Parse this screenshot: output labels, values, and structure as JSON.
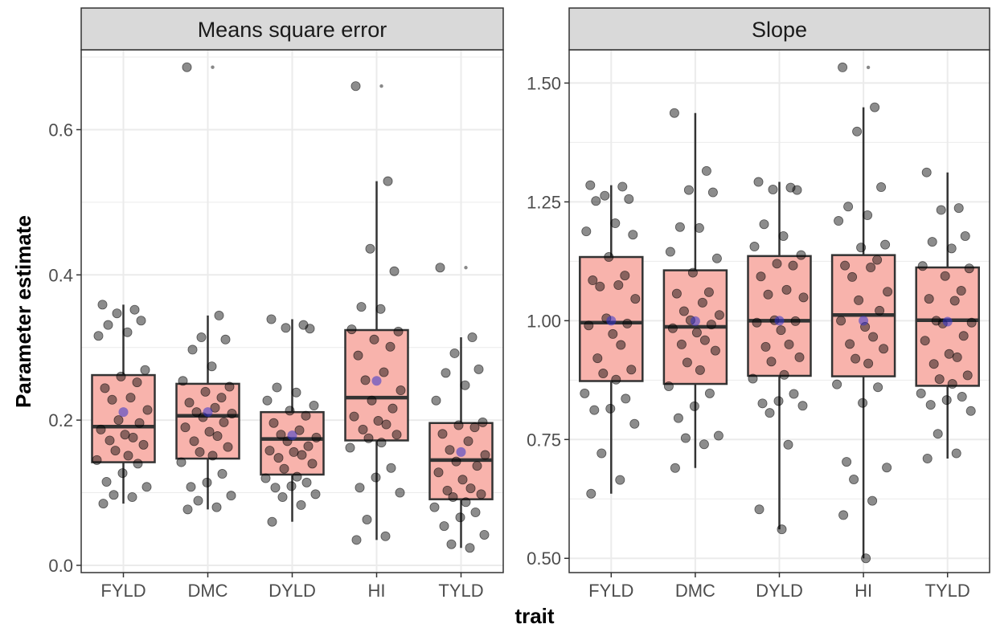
{
  "figure": {
    "ylabel": "Parameter estimate",
    "xlabel": "trait"
  },
  "colors": {
    "box_fill": "#f8b3ac",
    "box_stroke": "#333333",
    "point": "#000000",
    "mean_point": "#3333cc",
    "strip_fill": "#d9d9d9",
    "grid": "#ebebeb",
    "panel_border": "#333333"
  },
  "chart_data": [
    {
      "type": "box",
      "title": "Means square error",
      "categories": [
        "FYLD",
        "DMC",
        "DYLD",
        "HI",
        "TYLD"
      ],
      "ylim": [
        -0.01,
        0.71
      ],
      "yticks": [
        0.0,
        0.2,
        0.4,
        0.6
      ],
      "ytick_labels": [
        "0.0",
        "0.2",
        "0.4",
        "0.6"
      ],
      "grid": true,
      "boxes": [
        {
          "category": "FYLD",
          "whisker_low": 0.085,
          "q1": 0.142,
          "median": 0.191,
          "q3": 0.262,
          "whisker_high": 0.359,
          "mean": 0.211,
          "outliers": []
        },
        {
          "category": "DMC",
          "whisker_low": 0.077,
          "q1": 0.147,
          "median": 0.206,
          "q3": 0.25,
          "whisker_high": 0.344,
          "mean": 0.211,
          "outliers": [
            0.686
          ]
        },
        {
          "category": "DYLD",
          "whisker_low": 0.06,
          "q1": 0.125,
          "median": 0.174,
          "q3": 0.211,
          "whisker_high": 0.339,
          "mean": 0.179,
          "outliers": []
        },
        {
          "category": "HI",
          "whisker_low": 0.035,
          "q1": 0.172,
          "median": 0.231,
          "q3": 0.324,
          "whisker_high": 0.529,
          "mean": 0.254,
          "outliers": [
            0.66
          ]
        },
        {
          "category": "TYLD",
          "whisker_low": 0.024,
          "q1": 0.091,
          "median": 0.145,
          "q3": 0.196,
          "whisker_high": 0.314,
          "mean": 0.156,
          "outliers": [
            0.41
          ]
        }
      ],
      "jitter_points": [
        [
          0.359,
          0.352,
          0.347,
          0.337,
          0.331,
          0.321,
          0.316,
          0.269,
          0.26,
          0.252,
          0.244,
          0.231,
          0.228,
          0.214,
          0.2,
          0.196,
          0.187,
          0.18,
          0.176,
          0.172,
          0.166,
          0.158,
          0.151,
          0.145,
          0.14,
          0.127,
          0.115,
          0.108,
          0.097,
          0.094,
          0.085
        ],
        [
          0.686,
          0.344,
          0.314,
          0.311,
          0.297,
          0.274,
          0.254,
          0.246,
          0.239,
          0.231,
          0.224,
          0.217,
          0.211,
          0.209,
          0.204,
          0.197,
          0.19,
          0.184,
          0.178,
          0.171,
          0.163,
          0.156,
          0.151,
          0.142,
          0.126,
          0.114,
          0.108,
          0.096,
          0.089,
          0.08,
          0.077
        ],
        [
          0.339,
          0.331,
          0.327,
          0.326,
          0.245,
          0.238,
          0.227,
          0.22,
          0.213,
          0.206,
          0.196,
          0.186,
          0.18,
          0.176,
          0.171,
          0.164,
          0.158,
          0.156,
          0.152,
          0.148,
          0.14,
          0.133,
          0.122,
          0.12,
          0.114,
          0.109,
          0.107,
          0.098,
          0.094,
          0.083,
          0.06
        ],
        [
          0.66,
          0.529,
          0.436,
          0.405,
          0.356,
          0.353,
          0.325,
          0.322,
          0.311,
          0.301,
          0.289,
          0.266,
          0.255,
          0.241,
          0.227,
          0.216,
          0.205,
          0.199,
          0.194,
          0.187,
          0.18,
          0.175,
          0.169,
          0.162,
          0.134,
          0.121,
          0.107,
          0.1,
          0.063,
          0.04,
          0.035
        ],
        [
          0.41,
          0.314,
          0.292,
          0.27,
          0.265,
          0.248,
          0.227,
          0.197,
          0.193,
          0.19,
          0.181,
          0.171,
          0.159,
          0.152,
          0.143,
          0.137,
          0.128,
          0.118,
          0.106,
          0.103,
          0.098,
          0.094,
          0.087,
          0.08,
          0.073,
          0.066,
          0.054,
          0.042,
          0.029,
          0.024
        ]
      ]
    },
    {
      "type": "box",
      "title": "Slope",
      "categories": [
        "FYLD",
        "DMC",
        "DYLD",
        "HI",
        "TYLD"
      ],
      "ylim": [
        0.47,
        1.57
      ],
      "yticks": [
        0.5,
        0.75,
        1.0,
        1.25,
        1.5
      ],
      "ytick_labels": [
        "0.50",
        "0.75",
        "1.00",
        "1.25",
        "1.50"
      ],
      "grid": true,
      "boxes": [
        {
          "category": "FYLD",
          "whisker_low": 0.636,
          "q1": 0.873,
          "median": 0.996,
          "q3": 1.134,
          "whisker_high": 1.285,
          "mean": 1.0,
          "outliers": []
        },
        {
          "category": "DMC",
          "whisker_low": 0.69,
          "q1": 0.867,
          "median": 0.987,
          "q3": 1.106,
          "whisker_high": 1.437,
          "mean": 0.999,
          "outliers": []
        },
        {
          "category": "DYLD",
          "whisker_low": 0.561,
          "q1": 0.884,
          "median": 1.0,
          "q3": 1.136,
          "whisker_high": 1.292,
          "mean": 1.0,
          "outliers": []
        },
        {
          "category": "HI",
          "whisker_low": 0.5,
          "q1": 0.883,
          "median": 1.012,
          "q3": 1.138,
          "whisker_high": 1.449,
          "mean": 1.0,
          "outliers": [
            1.533
          ]
        },
        {
          "category": "TYLD",
          "whisker_low": 0.71,
          "q1": 0.863,
          "median": 1.001,
          "q3": 1.112,
          "whisker_high": 1.312,
          "mean": 0.998,
          "outliers": []
        }
      ],
      "jitter_points": [
        [
          1.285,
          1.282,
          1.263,
          1.256,
          1.252,
          1.205,
          1.188,
          1.181,
          1.134,
          1.095,
          1.085,
          1.075,
          1.072,
          1.046,
          1.005,
          0.994,
          0.99,
          0.972,
          0.949,
          0.921,
          0.897,
          0.889,
          0.876,
          0.847,
          0.836,
          0.815,
          0.812,
          0.783,
          0.721,
          0.665,
          0.636
        ],
        [
          1.437,
          1.315,
          1.275,
          1.27,
          1.197,
          1.195,
          1.145,
          1.131,
          1.101,
          1.06,
          1.057,
          1.038,
          1.02,
          1.012,
          1.001,
          0.992,
          0.984,
          0.975,
          0.959,
          0.95,
          0.937,
          0.912,
          0.896,
          0.862,
          0.847,
          0.82,
          0.795,
          0.758,
          0.753,
          0.74,
          0.69
        ],
        [
          1.292,
          1.28,
          1.276,
          1.275,
          1.203,
          1.178,
          1.156,
          1.138,
          1.12,
          1.116,
          1.093,
          1.065,
          1.055,
          1.049,
          1.001,
          0.999,
          0.996,
          0.98,
          0.95,
          0.945,
          0.923,
          0.914,
          0.886,
          0.878,
          0.846,
          0.831,
          0.826,
          0.821,
          0.806,
          0.739,
          0.603,
          0.561
        ],
        [
          1.533,
          1.449,
          1.398,
          1.281,
          1.24,
          1.222,
          1.21,
          1.16,
          1.154,
          1.128,
          1.116,
          1.112,
          1.092,
          1.061,
          1.043,
          1.021,
          1.0,
          0.987,
          0.966,
          0.951,
          0.941,
          0.92,
          0.91,
          0.866,
          0.86,
          0.827,
          0.703,
          0.691,
          0.666,
          0.621,
          0.591,
          0.5
        ],
        [
          1.312,
          1.237,
          1.233,
          1.178,
          1.166,
          1.152,
          1.115,
          1.11,
          1.094,
          1.063,
          1.046,
          1.042,
          1.0,
          0.996,
          0.994,
          0.968,
          0.958,
          0.93,
          0.923,
          0.909,
          0.885,
          0.877,
          0.867,
          0.847,
          0.84,
          0.833,
          0.823,
          0.81,
          0.762,
          0.721,
          0.71
        ]
      ]
    }
  ]
}
